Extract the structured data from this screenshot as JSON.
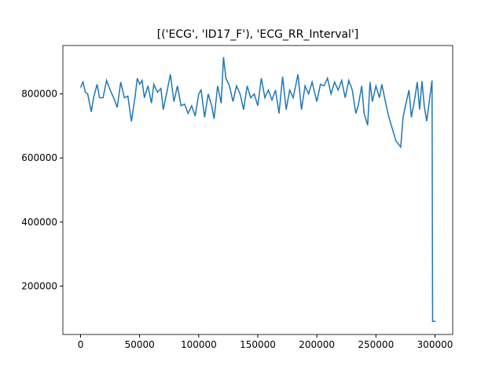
{
  "chart_data": {
    "type": "line",
    "title": "[('ECG', 'ID17_F'), 'ECG_RR_Interval']",
    "x": [
      0,
      2000,
      4000,
      6000,
      8000,
      9000,
      11000,
      14000,
      16000,
      19000,
      22000,
      25000,
      28000,
      31000,
      34000,
      37000,
      40000,
      43000,
      46000,
      48000,
      50000,
      52000,
      54000,
      57000,
      60000,
      62000,
      65000,
      68000,
      70000,
      73000,
      76000,
      79000,
      82000,
      85000,
      88000,
      91000,
      94000,
      97000,
      100000,
      102000,
      105000,
      108000,
      111000,
      113000,
      116000,
      119000,
      121000,
      123000,
      126000,
      129000,
      132000,
      135000,
      138000,
      141000,
      144000,
      147000,
      150000,
      153000,
      156000,
      159000,
      162000,
      165000,
      168000,
      171000,
      174000,
      177000,
      180000,
      184000,
      187000,
      190000,
      193000,
      196000,
      200000,
      203000,
      206000,
      209000,
      212000,
      215000,
      218000,
      221000,
      224000,
      227000,
      230000,
      233000,
      235000,
      238000,
      240000,
      243000,
      245000,
      247000,
      250000,
      253000,
      255000,
      258000,
      261000,
      264000,
      267000,
      271000,
      273000,
      275000,
      278000,
      280000,
      283000,
      285000,
      287000,
      289000,
      291000,
      293000,
      296000,
      297500,
      298000,
      300500
    ],
    "series": [
      {
        "color": "#1f77b4",
        "values": [
          820000,
          837000,
          805000,
          800000,
          763000,
          744000,
          788000,
          830000,
          788000,
          788000,
          842000,
          812000,
          788000,
          758000,
          837000,
          788000,
          793000,
          714000,
          788000,
          849000,
          830000,
          842000,
          788000,
          825000,
          771000,
          830000,
          805000,
          817000,
          751000,
          805000,
          861000,
          776000,
          825000,
          763000,
          768000,
          739000,
          763000,
          731000,
          800000,
          812000,
          727000,
          800000,
          763000,
          722000,
          825000,
          771000,
          915000,
          849000,
          825000,
          776000,
          825000,
          800000,
          751000,
          825000,
          788000,
          800000,
          763000,
          849000,
          788000,
          812000,
          781000,
          812000,
          739000,
          854000,
          751000,
          812000,
          788000,
          861000,
          751000,
          825000,
          800000,
          837000,
          776000,
          830000,
          825000,
          849000,
          800000,
          837000,
          812000,
          842000,
          788000,
          842000,
          812000,
          739000,
          763000,
          825000,
          739000,
          702000,
          837000,
          776000,
          825000,
          788000,
          830000,
          776000,
          727000,
          690000,
          653000,
          634000,
          727000,
          763000,
          812000,
          727000,
          788000,
          837000,
          751000,
          840000,
          760000,
          715000,
          800000,
          842000,
          90000,
          90000
        ]
      }
    ],
    "xlim": [
      -15000,
      315000
    ],
    "ylim": [
      49000,
      951000
    ],
    "xticks": [
      0,
      50000,
      100000,
      150000,
      200000,
      250000,
      300000
    ],
    "yticks": [
      200000,
      400000,
      600000,
      800000
    ]
  }
}
